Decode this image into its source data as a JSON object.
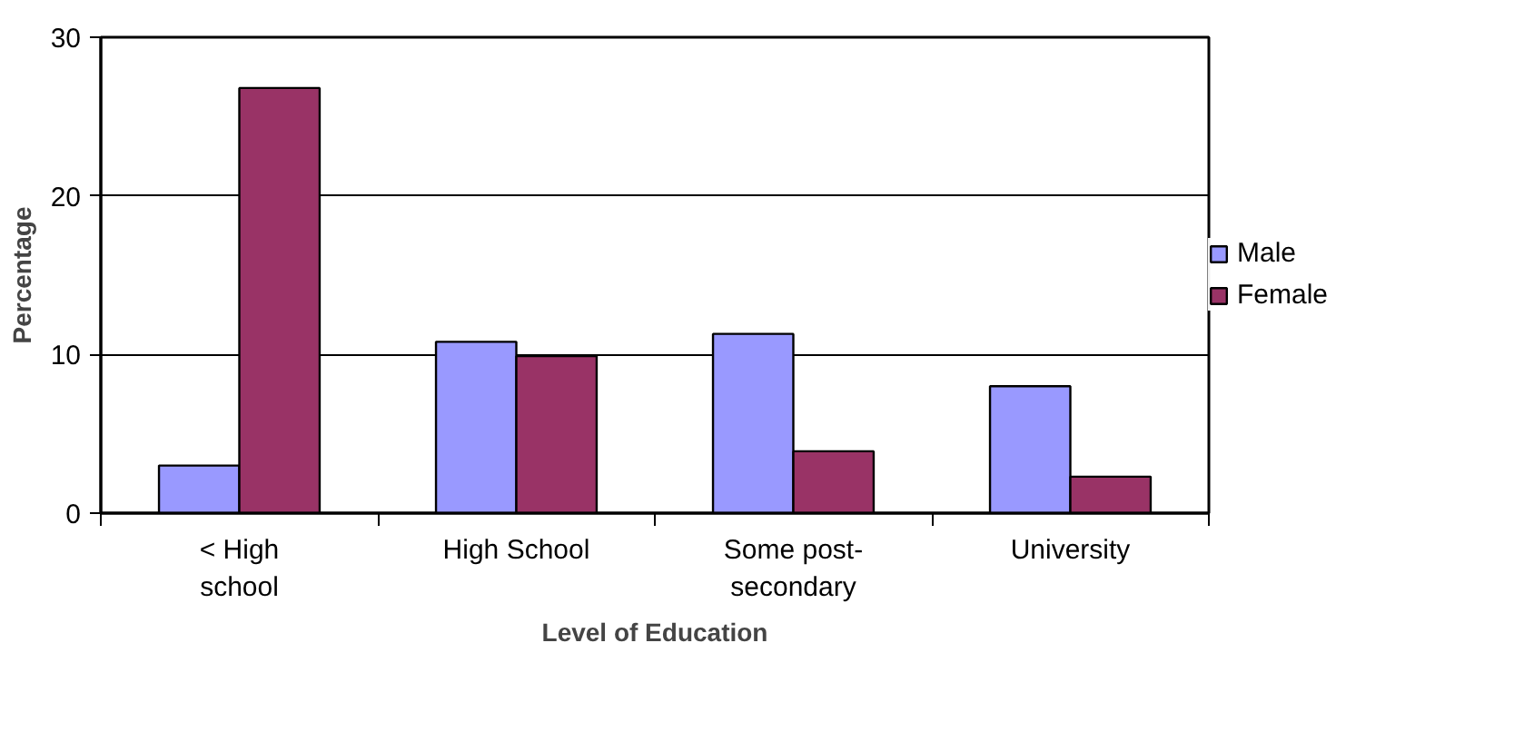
{
  "chart_data": {
    "type": "bar",
    "xlabel": "Level of Education",
    "ylabel": "Percentage",
    "categories": [
      "< High\nschool",
      "High School",
      "Some post-\nsecondary",
      "University"
    ],
    "series": [
      {
        "name": "Male",
        "color": "#9999ff",
        "values": [
          3.0,
          10.8,
          11.3,
          8.0
        ]
      },
      {
        "name": "Female",
        "color": "#993366",
        "values": [
          26.8,
          9.9,
          3.9,
          2.3
        ]
      }
    ],
    "ylim": [
      0,
      30
    ],
    "yticks": [
      0,
      10,
      20,
      30
    ],
    "grid": "y",
    "legend": "right"
  }
}
